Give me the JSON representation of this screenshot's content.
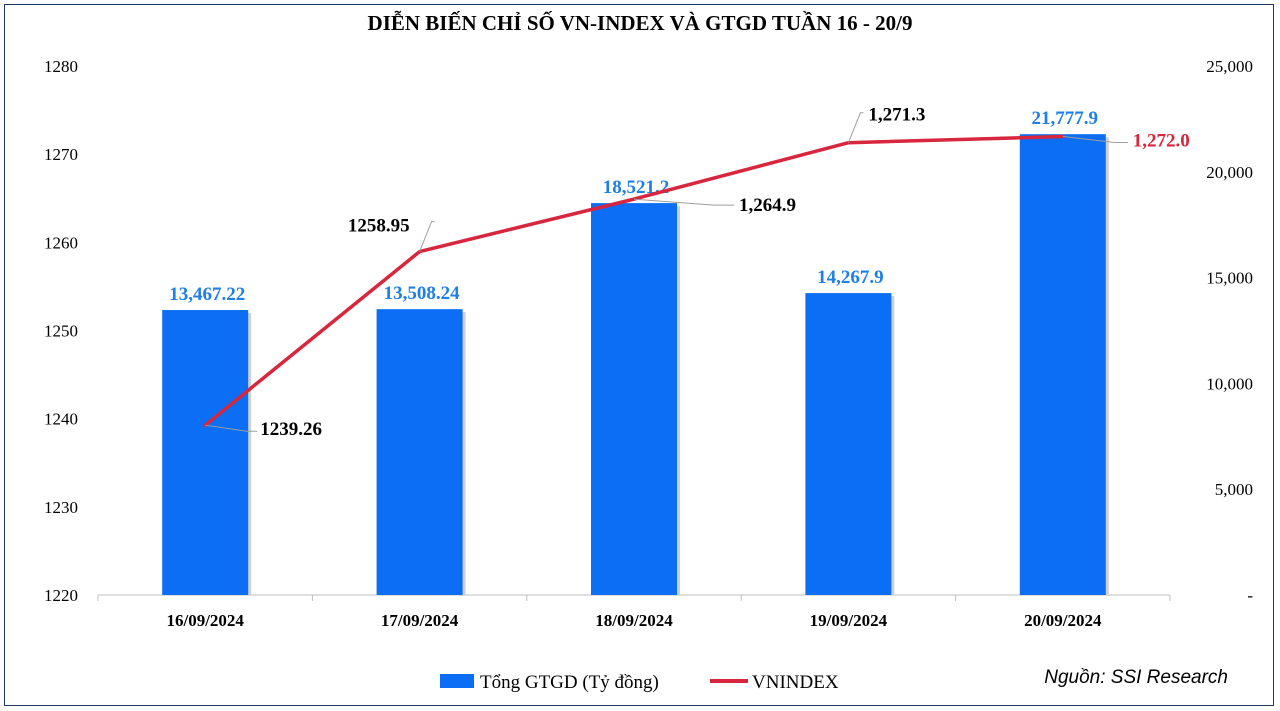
{
  "chart_data": {
    "type": "bar+line",
    "title": "DIỄN BIẾN CHỈ SỐ VN-INDEX VÀ GTGD TUẦN 16 - 20/9",
    "categories": [
      "16/09/2024",
      "17/09/2024",
      "18/09/2024",
      "19/09/2024",
      "20/09/2024"
    ],
    "series": [
      {
        "name": "Tổng GTGD (Tỷ đồng)",
        "type": "bar",
        "axis": "right",
        "color": "#0b6ef5",
        "values": [
          13467.22,
          13508.24,
          18521.2,
          14267.9,
          21777.9
        ],
        "labels": [
          "13,467.22",
          "13,508.24",
          "18,521.2",
          "14,267.9",
          "21,777.9"
        ]
      },
      {
        "name": "VNINDEX",
        "type": "line",
        "axis": "left",
        "color": "#d7263d",
        "values": [
          1239.26,
          1258.95,
          1264.9,
          1271.3,
          1272.0
        ],
        "labels": [
          "1239.26",
          "1258.95",
          "1,264.9",
          "1,271.3",
          "1,272.0"
        ]
      }
    ],
    "y_left": {
      "range": [
        1220,
        1280
      ],
      "ticks": [
        "1220",
        "1230",
        "1240",
        "1250",
        "1260",
        "1270",
        "1280"
      ]
    },
    "y_right": {
      "range": [
        0,
        25000
      ],
      "ticks": [
        "-",
        "5,000",
        "10,000",
        "15,000",
        "20,000",
        "25,000"
      ]
    },
    "grid": false,
    "legend_position": "bottom",
    "source": "Nguồn: SSI Research"
  }
}
